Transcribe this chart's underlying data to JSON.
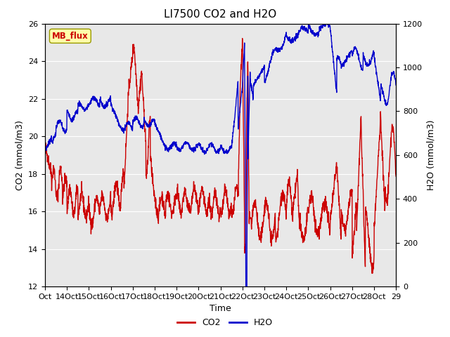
{
  "title": "LI7500 CO2 and H2O",
  "xlabel": "Time",
  "ylabel_left": "CO2 (mmol/m3)",
  "ylabel_right": "H2O (mmol/m3)",
  "xlim": [
    0,
    16
  ],
  "ylim_left": [
    12,
    26
  ],
  "ylim_right": [
    0,
    1200
  ],
  "xtick_labels": [
    "Oct",
    "14Oct",
    "15Oct",
    "16Oct",
    "17Oct",
    "18Oct",
    "19Oct",
    "20Oct",
    "21Oct",
    "22Oct",
    "23Oct",
    "24Oct",
    "25Oct",
    "26Oct",
    "27Oct",
    "28Oct",
    "29"
  ],
  "xtick_positions": [
    0,
    1,
    2,
    3,
    4,
    5,
    6,
    7,
    8,
    9,
    10,
    11,
    12,
    13,
    14,
    15,
    16
  ],
  "yticks_left": [
    12,
    14,
    16,
    18,
    20,
    22,
    24,
    26
  ],
  "yticks_right": [
    0,
    200,
    400,
    600,
    800,
    1000,
    1200
  ],
  "co2_color": "#cc0000",
  "h2o_color": "#0000cc",
  "plot_bg": "#e8e8e8",
  "annotation_text": "MB_flux",
  "annotation_color": "#cc0000",
  "annotation_bg": "#ffffaa",
  "linewidth": 1.0,
  "legend_entries": [
    "CO2",
    "H2O"
  ],
  "grid_color": "#ffffff",
  "title_fontsize": 11,
  "tick_fontsize": 8,
  "label_fontsize": 9
}
